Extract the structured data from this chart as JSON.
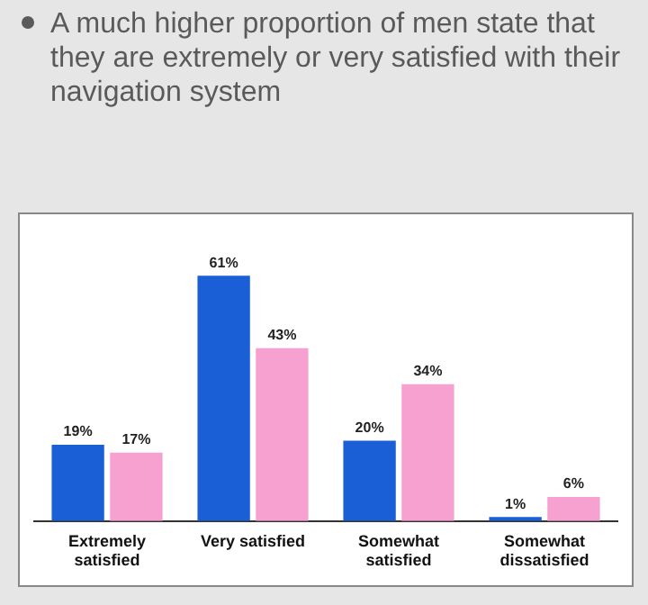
{
  "chart_data": {
    "type": "bar",
    "title": "A much higher proportion of men state that they are extremely or very satisfied with their navigation system",
    "categories": [
      "Extremely satisfied",
      "Very satisfied",
      "Somewhat satisfied",
      "Somewhat dissatisfied"
    ],
    "series": [
      {
        "color": "#1a5fd6",
        "values": [
          19,
          61,
          20,
          1
        ],
        "value_labels": [
          "19%",
          "61%",
          "20%",
          "1%"
        ]
      },
      {
        "color": "#f7a1d0",
        "values": [
          17,
          43,
          34,
          6
        ],
        "value_labels": [
          "17%",
          "43%",
          "34%",
          "6%"
        ]
      }
    ],
    "grid": false,
    "legend": false
  }
}
